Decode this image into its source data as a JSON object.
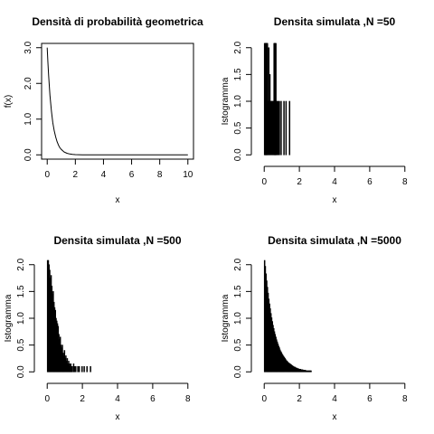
{
  "chart_data": [
    {
      "type": "line",
      "title": "Densità di probabilità geometrica",
      "xlabel": "x",
      "ylabel": "f(x)",
      "xlim": [
        0,
        10
      ],
      "ylim": [
        0,
        3
      ],
      "x_ticks": [
        "0",
        "2",
        "4",
        "6",
        "8",
        "10"
      ],
      "y_ticks": [
        "0.0",
        "1.0",
        "2.0",
        "3.0"
      ],
      "box": true,
      "series": [
        {
          "x": [
            0,
            0.05,
            0.1,
            0.15,
            0.2,
            0.3,
            0.4,
            0.5,
            0.6,
            0.7,
            0.8,
            0.9,
            1.0,
            1.2,
            1.4,
            1.6,
            1.8,
            2.0,
            2.5,
            3,
            4,
            5,
            6,
            7,
            8,
            9,
            10
          ],
          "y": [
            3.0,
            2.58,
            2.22,
            1.91,
            1.65,
            1.22,
            0.9,
            0.67,
            0.5,
            0.37,
            0.27,
            0.2,
            0.15,
            0.08,
            0.045,
            0.025,
            0.014,
            0.007,
            0.002,
            0.0,
            0,
            0,
            0,
            0,
            0,
            0,
            0
          ]
        }
      ]
    },
    {
      "type": "bar",
      "title": "Densita simulata ,N =50",
      "xlabel": "x",
      "ylabel": "Istogramma",
      "xlim": [
        0,
        8
      ],
      "ylim": [
        0,
        2
      ],
      "x_ticks": [
        "0",
        "2",
        "4",
        "6",
        "8"
      ],
      "y_ticks": [
        "0.0",
        "0.5",
        "1.0",
        "1.5",
        "2.0"
      ],
      "bin_width": 0.02,
      "bins": [
        [
          0.0,
          2.08
        ],
        [
          0.02,
          2.08
        ],
        [
          0.04,
          2.08
        ],
        [
          0.06,
          2.08
        ],
        [
          0.08,
          2.08
        ],
        [
          0.1,
          2.08
        ],
        [
          0.12,
          2.08
        ],
        [
          0.14,
          2.08
        ],
        [
          0.16,
          2.08
        ],
        [
          0.2,
          1.0
        ],
        [
          0.24,
          2.0
        ],
        [
          0.26,
          1.0
        ],
        [
          0.3,
          1.5
        ],
        [
          0.34,
          1.0
        ],
        [
          0.38,
          1.0
        ],
        [
          0.42,
          1.0
        ],
        [
          0.46,
          1.0
        ],
        [
          0.5,
          1.0
        ],
        [
          0.54,
          2.08
        ],
        [
          0.56,
          2.08
        ],
        [
          0.58,
          2.08
        ],
        [
          0.6,
          2.08
        ],
        [
          0.62,
          2.08
        ],
        [
          0.64,
          2.08
        ],
        [
          0.68,
          1.0
        ],
        [
          0.72,
          1.0
        ],
        [
          0.78,
          1.0
        ],
        [
          0.84,
          1.0
        ],
        [
          0.94,
          1.0
        ],
        [
          1.1,
          1.0
        ],
        [
          1.22,
          1.0
        ],
        [
          1.42,
          1.0
        ]
      ]
    },
    {
      "type": "bar",
      "title": "Densita simulata ,N =500",
      "xlabel": "x",
      "ylabel": "Istogramma",
      "xlim": [
        0,
        8
      ],
      "ylim": [
        0,
        2
      ],
      "x_ticks": [
        "0",
        "2",
        "4",
        "6",
        "8"
      ],
      "y_ticks": [
        "0.0",
        "0.5",
        "1.0",
        "1.5",
        "2.0"
      ],
      "bin_width": 0.04,
      "bins": [
        [
          0.0,
          2.08
        ],
        [
          0.04,
          2.08
        ],
        [
          0.08,
          2.0
        ],
        [
          0.12,
          1.9
        ],
        [
          0.16,
          1.75
        ],
        [
          0.2,
          1.8
        ],
        [
          0.24,
          1.6
        ],
        [
          0.28,
          1.45
        ],
        [
          0.32,
          1.5
        ],
        [
          0.36,
          1.3
        ],
        [
          0.4,
          1.2
        ],
        [
          0.44,
          1.15
        ],
        [
          0.48,
          1.0
        ],
        [
          0.52,
          0.95
        ],
        [
          0.56,
          0.9
        ],
        [
          0.6,
          0.85
        ],
        [
          0.64,
          0.7
        ],
        [
          0.68,
          0.6
        ],
        [
          0.72,
          0.65
        ],
        [
          0.76,
          0.5
        ],
        [
          0.8,
          0.45
        ],
        [
          0.84,
          0.5
        ],
        [
          0.88,
          0.35
        ],
        [
          0.92,
          0.3
        ],
        [
          0.96,
          0.4
        ],
        [
          1.0,
          0.25
        ],
        [
          1.04,
          0.3
        ],
        [
          1.08,
          0.2
        ],
        [
          1.12,
          0.25
        ],
        [
          1.16,
          0.15
        ],
        [
          1.2,
          0.2
        ],
        [
          1.24,
          0.15
        ],
        [
          1.28,
          0.1
        ],
        [
          1.32,
          0.15
        ],
        [
          1.36,
          0.1
        ],
        [
          1.4,
          0.1
        ],
        [
          1.48,
          0.15
        ],
        [
          1.52,
          0.1
        ],
        [
          1.6,
          0.1
        ],
        [
          1.72,
          0.1
        ],
        [
          1.8,
          0.1
        ],
        [
          1.96,
          0.1
        ],
        [
          2.08,
          0.1
        ],
        [
          2.24,
          0.1
        ],
        [
          2.44,
          0.1
        ]
      ]
    },
    {
      "type": "bar",
      "title": "Densita simulata ,N =5000",
      "xlabel": "x",
      "ylabel": "Istogramma",
      "xlim": [
        0,
        8
      ],
      "ylim": [
        0,
        2
      ],
      "x_ticks": [
        "0",
        "2",
        "4",
        "6",
        "8"
      ],
      "y_ticks": [
        "0.0",
        "0.5",
        "1.0",
        "1.5",
        "2.0"
      ],
      "bin_width": 0.04,
      "bins": [
        [
          0.0,
          2.08
        ],
        [
          0.04,
          1.97
        ],
        [
          0.08,
          1.83
        ],
        [
          0.12,
          1.7
        ],
        [
          0.16,
          1.58
        ],
        [
          0.2,
          1.47
        ],
        [
          0.24,
          1.36
        ],
        [
          0.28,
          1.27
        ],
        [
          0.32,
          1.18
        ],
        [
          0.36,
          1.09
        ],
        [
          0.4,
          1.01
        ],
        [
          0.44,
          0.94
        ],
        [
          0.48,
          0.87
        ],
        [
          0.52,
          0.81
        ],
        [
          0.56,
          0.75
        ],
        [
          0.6,
          0.7
        ],
        [
          0.64,
          0.65
        ],
        [
          0.68,
          0.6
        ],
        [
          0.72,
          0.56
        ],
        [
          0.76,
          0.52
        ],
        [
          0.8,
          0.48
        ],
        [
          0.84,
          0.45
        ],
        [
          0.88,
          0.41
        ],
        [
          0.92,
          0.38
        ],
        [
          0.96,
          0.36
        ],
        [
          1.0,
          0.33
        ],
        [
          1.04,
          0.31
        ],
        [
          1.08,
          0.29
        ],
        [
          1.12,
          0.27
        ],
        [
          1.16,
          0.25
        ],
        [
          1.2,
          0.23
        ],
        [
          1.24,
          0.21
        ],
        [
          1.28,
          0.2
        ],
        [
          1.32,
          0.18
        ],
        [
          1.36,
          0.17
        ],
        [
          1.4,
          0.16
        ],
        [
          1.44,
          0.15
        ],
        [
          1.48,
          0.14
        ],
        [
          1.52,
          0.13
        ],
        [
          1.56,
          0.12
        ],
        [
          1.6,
          0.11
        ],
        [
          1.64,
          0.1
        ],
        [
          1.68,
          0.09
        ],
        [
          1.72,
          0.09
        ],
        [
          1.76,
          0.08
        ],
        [
          1.8,
          0.07
        ],
        [
          1.84,
          0.07
        ],
        [
          1.88,
          0.06
        ],
        [
          1.92,
          0.06
        ],
        [
          1.96,
          0.05
        ],
        [
          2.0,
          0.05
        ],
        [
          2.04,
          0.05
        ],
        [
          2.08,
          0.04
        ],
        [
          2.12,
          0.04
        ],
        [
          2.16,
          0.04
        ],
        [
          2.2,
          0.03
        ],
        [
          2.24,
          0.03
        ],
        [
          2.28,
          0.03
        ],
        [
          2.32,
          0.03
        ],
        [
          2.36,
          0.02
        ],
        [
          2.4,
          0.02
        ],
        [
          2.44,
          0.02
        ],
        [
          2.48,
          0.02
        ],
        [
          2.52,
          0.02
        ],
        [
          2.56,
          0.02
        ],
        [
          2.6,
          0.02
        ],
        [
          2.64,
          0.02
        ]
      ]
    }
  ]
}
